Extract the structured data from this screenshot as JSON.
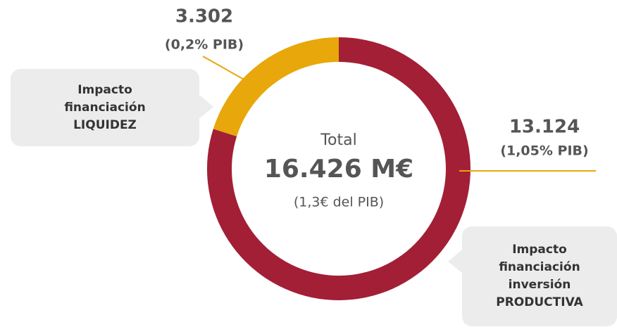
{
  "chart_data": {
    "type": "donut",
    "categories": [
      "Impacto financiación LIQUIDEZ",
      "Impacto financiación inversión PRODUCTIVA"
    ],
    "values": [
      3302,
      13124
    ],
    "value_labels": [
      "3.302",
      "13.124"
    ],
    "colors": [
      "#e8a70a",
      "#a21f36"
    ],
    "gdp_share": [
      0.2,
      1.05
    ],
    "gdp_share_labels": [
      "(0,2% PIB)",
      "(1,05% PIB)"
    ],
    "center_title": "Total",
    "total": 16426,
    "total_label": "16.426 M€",
    "center_note": "(1,3€ del PIB)"
  }
}
